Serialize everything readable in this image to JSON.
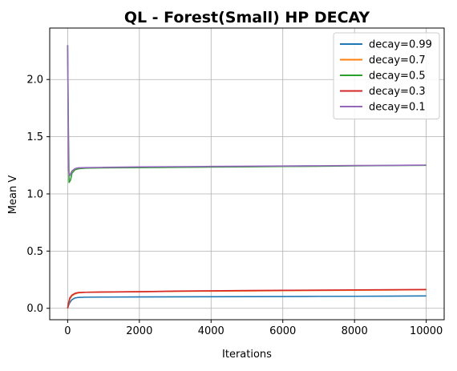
{
  "chart_data": {
    "type": "line",
    "title": "QL - Forest(Small) HP DECAY",
    "xlabel": "Iterations",
    "ylabel": "Mean V",
    "xlim": [
      -500,
      10500
    ],
    "ylim": [
      -0.1,
      2.45
    ],
    "xticks": [
      0,
      2000,
      4000,
      6000,
      8000,
      10000
    ],
    "yticks": [
      0.0,
      0.5,
      1.0,
      1.5,
      2.0
    ],
    "xtick_labels": [
      "0",
      "2000",
      "4000",
      "6000",
      "8000",
      "10000"
    ],
    "ytick_labels": [
      "0.0",
      "0.5",
      "1.0",
      "1.5",
      "2.0"
    ],
    "grid": true,
    "legend_position": "top-right",
    "series": [
      {
        "name": "decay=0.99",
        "color": "#1f77b4",
        "points": [
          [
            0,
            0.0
          ],
          [
            20,
            0.02
          ],
          [
            60,
            0.05
          ],
          [
            120,
            0.075
          ],
          [
            200,
            0.09
          ],
          [
            300,
            0.095
          ],
          [
            500,
            0.097
          ],
          [
            1000,
            0.098
          ],
          [
            2000,
            0.099
          ],
          [
            3000,
            0.1
          ],
          [
            4000,
            0.101
          ],
          [
            5000,
            0.102
          ],
          [
            6000,
            0.103
          ],
          [
            7000,
            0.104
          ],
          [
            8000,
            0.105
          ],
          [
            9000,
            0.106
          ],
          [
            10000,
            0.108
          ]
        ]
      },
      {
        "name": "decay=0.7",
        "color": "#ff7f0e",
        "points": [
          [
            0,
            0.0
          ],
          [
            20,
            0.03
          ],
          [
            60,
            0.08
          ],
          [
            120,
            0.11
          ],
          [
            200,
            0.125
          ],
          [
            300,
            0.135
          ],
          [
            500,
            0.14
          ],
          [
            1000,
            0.142
          ],
          [
            2000,
            0.145
          ],
          [
            3000,
            0.148
          ],
          [
            4000,
            0.15
          ],
          [
            5000,
            0.152
          ],
          [
            6000,
            0.154
          ],
          [
            7000,
            0.156
          ],
          [
            8000,
            0.158
          ],
          [
            9000,
            0.16
          ],
          [
            10000,
            0.162
          ]
        ]
      },
      {
        "name": "decay=0.5",
        "color": "#2ca02c",
        "points": [
          [
            0,
            2.3
          ],
          [
            20,
            1.6
          ],
          [
            40,
            1.1
          ],
          [
            80,
            1.12
          ],
          [
            120,
            1.18
          ],
          [
            200,
            1.21
          ],
          [
            300,
            1.22
          ],
          [
            500,
            1.225
          ],
          [
            1000,
            1.228
          ],
          [
            2000,
            1.23
          ],
          [
            3000,
            1.232
          ],
          [
            4000,
            1.235
          ],
          [
            5000,
            1.237
          ],
          [
            6000,
            1.24
          ],
          [
            7000,
            1.242
          ],
          [
            7300,
            1.243
          ],
          [
            8000,
            1.245
          ],
          [
            9000,
            1.248
          ],
          [
            10000,
            1.25
          ]
        ]
      },
      {
        "name": "decay=0.3",
        "color": "#d62728",
        "points": [
          [
            0,
            0.0
          ],
          [
            20,
            0.04
          ],
          [
            60,
            0.09
          ],
          [
            120,
            0.115
          ],
          [
            200,
            0.13
          ],
          [
            300,
            0.138
          ],
          [
            500,
            0.14
          ],
          [
            1000,
            0.142
          ],
          [
            2000,
            0.145
          ],
          [
            3000,
            0.15
          ],
          [
            4000,
            0.153
          ],
          [
            5000,
            0.155
          ],
          [
            6000,
            0.157
          ],
          [
            7000,
            0.159
          ],
          [
            8000,
            0.161
          ],
          [
            9000,
            0.162
          ],
          [
            10000,
            0.164
          ]
        ]
      },
      {
        "name": "decay=0.1",
        "color": "#9467bd",
        "points": [
          [
            0,
            2.3
          ],
          [
            10,
            1.9
          ],
          [
            25,
            1.2
          ],
          [
            60,
            1.16
          ],
          [
            120,
            1.2
          ],
          [
            200,
            1.22
          ],
          [
            300,
            1.228
          ],
          [
            500,
            1.23
          ],
          [
            1000,
            1.232
          ],
          [
            2000,
            1.236
          ],
          [
            3000,
            1.238
          ],
          [
            4000,
            1.24
          ],
          [
            5000,
            1.242
          ],
          [
            6000,
            1.244
          ],
          [
            7000,
            1.246
          ],
          [
            8000,
            1.248
          ],
          [
            9000,
            1.249
          ],
          [
            10000,
            1.252
          ]
        ]
      }
    ]
  }
}
